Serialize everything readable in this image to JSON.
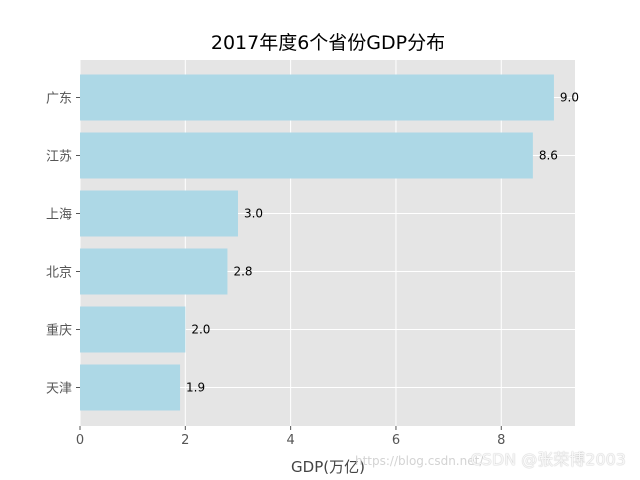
{
  "chart_data": {
    "type": "bar",
    "orientation": "horizontal",
    "title": "2017年度6个省份GDP分布",
    "xlabel": "GDP(万亿)",
    "ylabel": "",
    "categories": [
      "广东",
      "江苏",
      "上海",
      "北京",
      "重庆",
      "天津"
    ],
    "values": [
      9.0,
      8.6,
      3.0,
      2.8,
      2.0,
      1.9
    ],
    "value_labels": [
      "9.0",
      "8.6",
      "3.0",
      "2.8",
      "2.0",
      "1.9"
    ],
    "xlim": [
      0,
      9.4
    ],
    "xticks": [
      0,
      2,
      4,
      6,
      8
    ],
    "xtick_labels": [
      "0",
      "2",
      "4",
      "6",
      "8"
    ],
    "grid": true,
    "bar_color": "#add8e6",
    "background_color": "#e5e5e5"
  },
  "watermark": {
    "main": "CSDN @张荣博2003",
    "sub": "https://blog.csdn.net/"
  }
}
